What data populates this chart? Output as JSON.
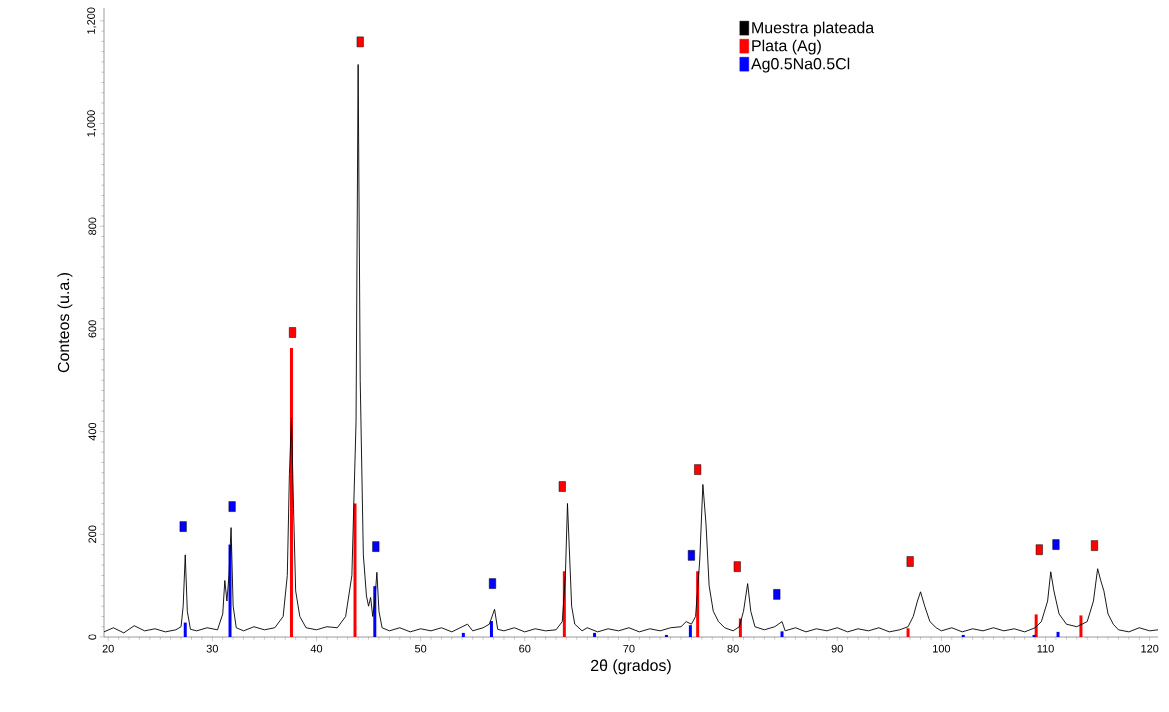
{
  "chart_data": {
    "type": "line",
    "xlabel": "2θ (grados)",
    "ylabel": "Conteos (u.a.)",
    "xlim": [
      19.6,
      120.8
    ],
    "ylim": [
      0,
      1225
    ],
    "xticks": [
      20,
      30,
      40,
      50,
      60,
      70,
      80,
      90,
      100,
      110,
      120
    ],
    "yticks": [
      0,
      200,
      400,
      600,
      800,
      {
        "value": 1000,
        "label": "1,000"
      },
      {
        "value": 1200,
        "label": "1,200"
      }
    ],
    "grid": false,
    "legend": "top right",
    "series": [
      {
        "name": "Muestra plateada",
        "color": "#000000",
        "marker": "none",
        "line_style": "solid",
        "x": [
          19.6,
          20.5,
          21.5,
          22.5,
          23.5,
          24.5,
          25.5,
          26.5,
          27.0,
          27.2,
          27.4,
          27.6,
          27.9,
          28.5,
          29.5,
          30.5,
          31.0,
          31.2,
          31.4,
          31.6,
          31.8,
          32.0,
          32.3,
          33,
          34,
          35,
          36,
          36.8,
          37.2,
          37.4,
          37.6,
          37.8,
          38.0,
          38.4,
          39,
          40,
          41,
          42,
          42.8,
          43.4,
          43.8,
          44.0,
          44.2,
          44.5,
          44.8,
          45.0,
          45.2,
          45.4,
          45.6,
          45.8,
          46.0,
          46.3,
          47,
          48,
          49,
          50,
          51,
          52,
          53,
          54.5,
          55,
          56,
          56.6,
          57.1,
          57.4,
          58,
          59,
          60,
          61,
          62,
          63,
          63.6,
          63.9,
          64.1,
          64.3,
          64.5,
          64.8,
          65.5,
          66,
          67,
          68,
          69,
          70,
          71,
          72,
          73,
          74,
          75,
          75.5,
          76.0,
          76.4,
          76.8,
          77.1,
          77.4,
          77.7,
          78.1,
          78.6,
          79.2,
          80,
          80.6,
          81.0,
          81.4,
          81.7,
          82.1,
          83,
          84,
          84.7,
          85,
          86,
          87,
          88,
          89,
          90,
          91,
          92,
          93,
          94,
          95,
          96,
          96.8,
          97.3,
          97.7,
          98.0,
          98.4,
          98.9,
          99.5,
          100,
          101,
          102,
          103,
          104,
          105,
          106,
          107,
          108,
          109,
          109.6,
          110.2,
          110.5,
          110.8,
          111.3,
          112,
          113,
          114,
          114.6,
          115.0,
          115.3,
          115.6,
          116,
          116.5,
          117,
          118,
          119,
          120,
          120.8
        ],
        "values": [
          10,
          18,
          8,
          22,
          12,
          16,
          10,
          14,
          20,
          60,
          160,
          50,
          15,
          12,
          18,
          14,
          45,
          110,
          70,
          120,
          213,
          60,
          18,
          12,
          20,
          14,
          18,
          40,
          120,
          316,
          427,
          250,
          90,
          40,
          18,
          14,
          20,
          18,
          40,
          120,
          420,
          1115,
          500,
          160,
          80,
          60,
          77,
          40,
          70,
          126,
          50,
          18,
          12,
          18,
          10,
          16,
          12,
          18,
          10,
          25,
          12,
          18,
          25,
          54,
          15,
          12,
          18,
          10,
          16,
          12,
          14,
          30,
          120,
          260,
          160,
          60,
          25,
          12,
          18,
          10,
          16,
          12,
          18,
          10,
          16,
          12,
          18,
          20,
          30,
          25,
          40,
          150,
          297,
          220,
          100,
          50,
          30,
          18,
          12,
          20,
          50,
          104,
          50,
          20,
          14,
          20,
          30,
          12,
          18,
          10,
          16,
          12,
          18,
          10,
          16,
          12,
          18,
          10,
          14,
          20,
          40,
          70,
          88,
          60,
          30,
          18,
          12,
          18,
          10,
          16,
          12,
          18,
          12,
          16,
          10,
          18,
          30,
          70,
          127,
          90,
          45,
          25,
          20,
          30,
          70,
          133,
          110,
          90,
          45,
          25,
          14,
          10,
          18,
          12,
          14
        ]
      },
      {
        "name": "Plata (Ag)",
        "type": "bar",
        "color": "#ff0000",
        "x": [
          37.6,
          43.7,
          63.8,
          76.6,
          80.7,
          96.8,
          109.1,
          113.4
        ],
        "values": [
          563,
          260,
          128,
          128,
          36,
          17,
          44,
          42
        ]
      },
      {
        "name": "Ag0.5Na0.5Cl",
        "type": "bar",
        "color": "#0000ff",
        "x": [
          27.4,
          31.7,
          45.6,
          54.1,
          56.8,
          66.7,
          73.6,
          75.9,
          84.7,
          102.1,
          108.9,
          111.2
        ],
        "values": [
          28,
          180,
          99,
          8,
          31,
          8,
          4,
          23,
          11,
          4,
          4,
          10
        ]
      },
      {
        "type": "scatter",
        "color": "#ff0000",
        "marker": "square",
        "x": [
          37.7,
          44.2,
          63.6,
          76.6,
          80.4,
          97.0,
          109.4,
          114.7
        ],
        "values": [
          593,
          1159,
          293,
          326,
          137,
          147,
          170,
          178
        ]
      },
      {
        "type": "scatter",
        "color": "#0000ff",
        "marker": "square",
        "x": [
          27.2,
          31.9,
          45.7,
          56.9,
          76.0,
          84.2,
          111.0
        ],
        "values": [
          215,
          254,
          176,
          104,
          159,
          83,
          180
        ]
      }
    ]
  }
}
